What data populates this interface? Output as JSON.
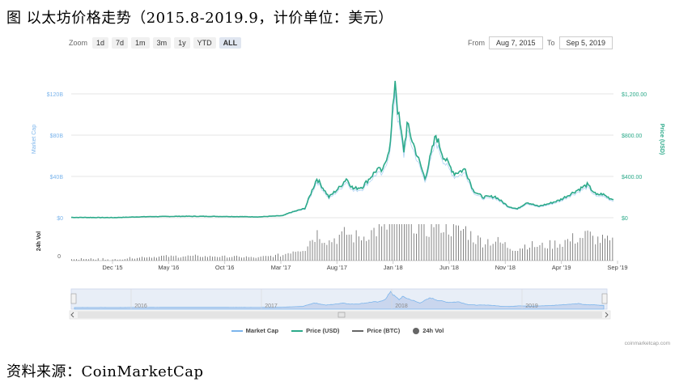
{
  "caption": "图 以太坊价格走势（2015.8-2019.9，计价单位：美元）",
  "source": "资料来源：CoinMarketCap",
  "toolbar": {
    "zoom_label": "Zoom",
    "buttons": [
      "1d",
      "7d",
      "1m",
      "3m",
      "1y",
      "YTD",
      "ALL"
    ],
    "active": "ALL",
    "from_label": "From",
    "from_value": "Aug 7, 2015",
    "to_label": "To",
    "to_value": "Sep 5, 2019"
  },
  "chart_data": {
    "type": "line",
    "x_unit": "date",
    "x_range": [
      "2015-08-07",
      "2019-09-05"
    ],
    "x_ticks": [
      "Dec '15",
      "May '16",
      "Oct '16",
      "Mar '17",
      "Aug '17",
      "Jan '18",
      "Jun '18",
      "Nov '18",
      "Apr '19",
      "Sep '19"
    ],
    "y_left": {
      "label": "Market Cap",
      "ticks": [
        "$0",
        "$40B",
        "$80B",
        "$120B"
      ],
      "range": [
        0,
        120
      ]
    },
    "y_right": {
      "label": "Price (USD)",
      "ticks": [
        "$0",
        "$400.00",
        "$800.00",
        "$1,200.00"
      ],
      "range": [
        0,
        1200
      ]
    },
    "volume_axis": {
      "label": "24h Vol",
      "ticks": [
        "0"
      ]
    },
    "series": [
      {
        "name": "Market Cap",
        "axis": "left",
        "color": "#7cb5ec"
      },
      {
        "name": "Price (USD)",
        "axis": "right",
        "color": "#2caa8a",
        "points": [
          [
            "2015-08-07",
            3
          ],
          [
            "2015-12-01",
            1
          ],
          [
            "2016-03-01",
            10
          ],
          [
            "2016-06-15",
            14
          ],
          [
            "2016-10-01",
            12
          ],
          [
            "2017-01-01",
            8
          ],
          [
            "2017-03-10",
            20
          ],
          [
            "2017-03-31",
            50
          ],
          [
            "2017-05-10",
            90
          ],
          [
            "2017-06-12",
            380
          ],
          [
            "2017-07-15",
            200
          ],
          [
            "2017-08-15",
            300
          ],
          [
            "2017-09-01",
            380
          ],
          [
            "2017-09-20",
            280
          ],
          [
            "2017-10-15",
            300
          ],
          [
            "2017-11-25",
            470
          ],
          [
            "2017-12-10",
            450
          ],
          [
            "2017-12-31",
            720
          ],
          [
            "2018-01-13",
            1350
          ],
          [
            "2018-01-20",
            1050
          ],
          [
            "2018-02-06",
            650
          ],
          [
            "2018-02-15",
            900
          ],
          [
            "2018-03-15",
            600
          ],
          [
            "2018-04-05",
            380
          ],
          [
            "2018-05-05",
            800
          ],
          [
            "2018-05-25",
            600
          ],
          [
            "2018-06-25",
            430
          ],
          [
            "2018-07-25",
            470
          ],
          [
            "2018-08-15",
            270
          ],
          [
            "2018-09-10",
            200
          ],
          [
            "2018-10-15",
            205
          ],
          [
            "2018-11-20",
            110
          ],
          [
            "2018-12-15",
            85
          ],
          [
            "2019-01-10",
            150
          ],
          [
            "2019-02-10",
            110
          ],
          [
            "2019-03-10",
            135
          ],
          [
            "2019-04-10",
            170
          ],
          [
            "2019-05-15",
            240
          ],
          [
            "2019-06-25",
            320
          ],
          [
            "2019-07-20",
            220
          ],
          [
            "2019-08-05",
            230
          ],
          [
            "2019-08-25",
            190
          ],
          [
            "2019-09-05",
            175
          ]
        ]
      },
      {
        "name": "Price (BTC)",
        "color": "#666666"
      },
      {
        "name": "24h Vol",
        "color": "#666666"
      }
    ],
    "navigator_years": [
      "2016",
      "2017",
      "2018",
      "2019"
    ],
    "grid": true,
    "legend": "bottom-center"
  },
  "credit": "coinmarketcap.com"
}
